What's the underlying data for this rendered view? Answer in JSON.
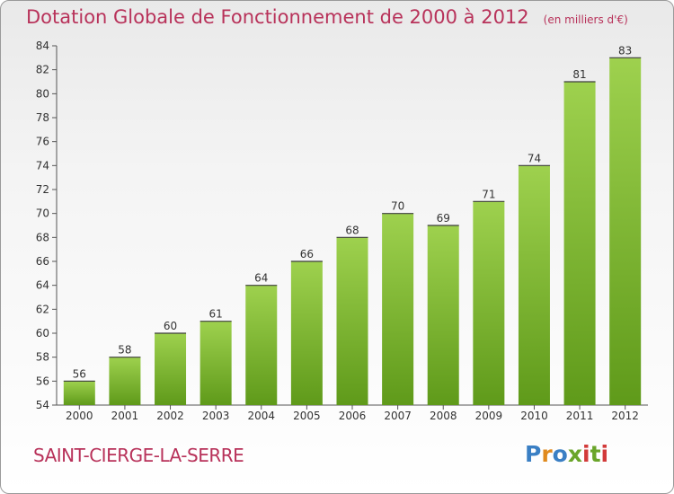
{
  "header": {
    "title": "Dotation Globale de Fonctionnement de 2000 à 2012",
    "unit": "(en milliers d'€)"
  },
  "footer": {
    "commune": "SAINT-CIERGE-LA-SERRE",
    "logo_letters": [
      "P",
      "r",
      "o",
      "x",
      "i",
      "t",
      "i"
    ],
    "logo_colors": [
      "#3a7fc4",
      "#e08a1e",
      "#3a7fc4",
      "#6aa52a",
      "#d23a3a",
      "#6aa52a",
      "#d23a3a"
    ]
  },
  "colors": {
    "bar_top": "#9ed14e",
    "bar_bottom": "#5f9a1a",
    "title": "#b8325a"
  },
  "chart_data": {
    "type": "bar",
    "categories": [
      "2000",
      "2001",
      "2002",
      "2003",
      "2004",
      "2005",
      "2006",
      "2007",
      "2008",
      "2009",
      "2010",
      "2011",
      "2012"
    ],
    "values": [
      56,
      58,
      60,
      61,
      64,
      66,
      68,
      70,
      69,
      71,
      74,
      81,
      83
    ],
    "data_labels": [
      "56",
      "58",
      "60",
      "61",
      "64",
      "66",
      "68",
      "70",
      "69",
      "71",
      "74",
      "81",
      "83"
    ],
    "ylim": [
      54,
      84
    ],
    "yticks": [
      "54",
      "56",
      "58",
      "60",
      "62",
      "64",
      "66",
      "68",
      "70",
      "72",
      "74",
      "76",
      "78",
      "80",
      "82",
      "84"
    ],
    "grid": false
  }
}
